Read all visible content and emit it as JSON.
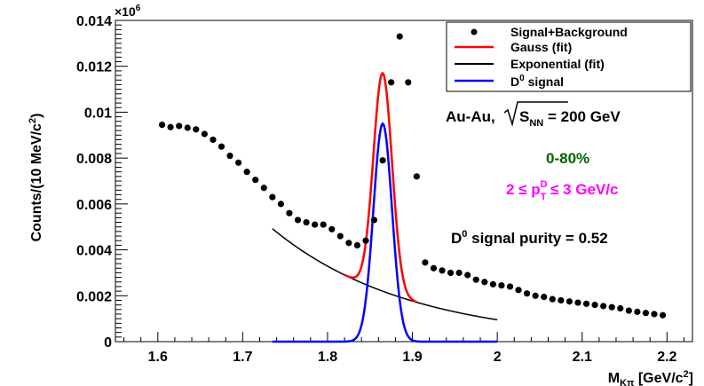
{
  "chart_data": {
    "type": "scatter",
    "title": "",
    "xlabel_main": "M",
    "xlabel_sub": "Kπ",
    "xlabel_unit": " [GeV/c",
    "xlabel_unit_sup": "2",
    "xlabel_unit_close": "]",
    "ylabel_main": "Counts/(10 MeV/c",
    "ylabel_sup": "2",
    "ylabel_close": ")",
    "multiplier_prefix": "×10",
    "multiplier_exp": "6",
    "xlim": [
      1.55,
      2.23
    ],
    "ylim": [
      0,
      0.014
    ],
    "x_ticks": [
      1.6,
      1.7,
      1.8,
      1.9,
      2.0,
      2.1,
      2.2
    ],
    "x_tick_labels": [
      "1.6",
      "1.7",
      "1.8",
      "1.9",
      "2",
      "2.1",
      "2.2"
    ],
    "y_ticks": [
      0,
      0.002,
      0.004,
      0.006,
      0.008,
      0.01,
      0.012,
      0.014
    ],
    "y_tick_labels": [
      "0",
      "0.002",
      "0.004",
      "0.006",
      "0.008",
      "0.01",
      "0.012",
      "0.014"
    ],
    "colors": {
      "points": "#000000",
      "gauss": "#ff0000",
      "exponential": "#000000",
      "signal": "#0000ff",
      "centrality": "#006400",
      "pt_range": "#ff00ff"
    },
    "legend": {
      "placement": "top-right",
      "entries": [
        "Signal+Background",
        "Gauss (fit)",
        "Exponential (fit)"
      ],
      "d0_main": "D",
      "d0_sup": "0",
      "d0_rest": " signal"
    },
    "annotations": {
      "collision": "Au-Au,",
      "sqrt_s": "S",
      "sqrt_sub": "NN",
      "energy": " = 200 GeV",
      "centrality": "0-80%",
      "pt_prefix": "2 ≤ p",
      "pt_sup": "D",
      "pt_sub": "T",
      "pt_suffix": " ≤ 3 GeV/c",
      "purity_main": "D",
      "purity_sup": "0",
      "purity_rest": " signal purity = 0.52"
    },
    "series": [
      {
        "name": "Signal+Background",
        "x": [
          1.605,
          1.615,
          1.625,
          1.635,
          1.645,
          1.655,
          1.665,
          1.675,
          1.685,
          1.695,
          1.705,
          1.715,
          1.725,
          1.735,
          1.745,
          1.755,
          1.765,
          1.775,
          1.785,
          1.795,
          1.805,
          1.815,
          1.825,
          1.835,
          1.845,
          1.855,
          1.865,
          1.875,
          1.885,
          1.895,
          1.905,
          1.915,
          1.925,
          1.935,
          1.945,
          1.955,
          1.965,
          1.975,
          1.985,
          1.995,
          2.005,
          2.015,
          2.025,
          2.035,
          2.045,
          2.055,
          2.065,
          2.075,
          2.085,
          2.095,
          2.105,
          2.115,
          2.125,
          2.135,
          2.145,
          2.155,
          2.165,
          2.175,
          2.185,
          2.195
        ],
        "y": [
          0.00945,
          0.00935,
          0.0094,
          0.00932,
          0.00925,
          0.00905,
          0.0088,
          0.0085,
          0.0081,
          0.0078,
          0.0074,
          0.00705,
          0.0067,
          0.0063,
          0.006,
          0.0056,
          0.0053,
          0.0052,
          0.0051,
          0.0051,
          0.0049,
          0.0046,
          0.0043,
          0.0042,
          0.0044,
          0.0053,
          0.0079,
          0.0113,
          0.0133,
          0.0113,
          0.0072,
          0.00345,
          0.0032,
          0.0031,
          0.003,
          0.003,
          0.0029,
          0.0027,
          0.0026,
          0.0025,
          0.00245,
          0.0024,
          0.00225,
          0.0021,
          0.002,
          0.00195,
          0.00185,
          0.0018,
          0.00175,
          0.0017,
          0.00165,
          0.0016,
          0.00155,
          0.0015,
          0.00145,
          0.00135,
          0.0013,
          0.00125,
          0.0012,
          0.00115
        ]
      },
      {
        "name": "Gauss (fit)",
        "model": "gauss+exp",
        "x_range": [
          1.82,
          1.905
        ],
        "mean": 1.865,
        "sigma": 0.011,
        "amplitude": 0.0095,
        "bkg_a": 0.0155,
        "bkg_b": 6.2,
        "bkg_x0": 1.55
      },
      {
        "name": "Exponential (fit)",
        "model": "exp",
        "x_range": [
          1.735,
          2.0
        ],
        "bkg_a": 0.0155,
        "bkg_b": 6.2,
        "bkg_x0": 1.55
      },
      {
        "name": "D0 signal",
        "model": "gauss",
        "x_range": [
          1.735,
          2.0
        ],
        "mean": 1.865,
        "sigma": 0.011,
        "amplitude": 0.0095
      }
    ]
  }
}
